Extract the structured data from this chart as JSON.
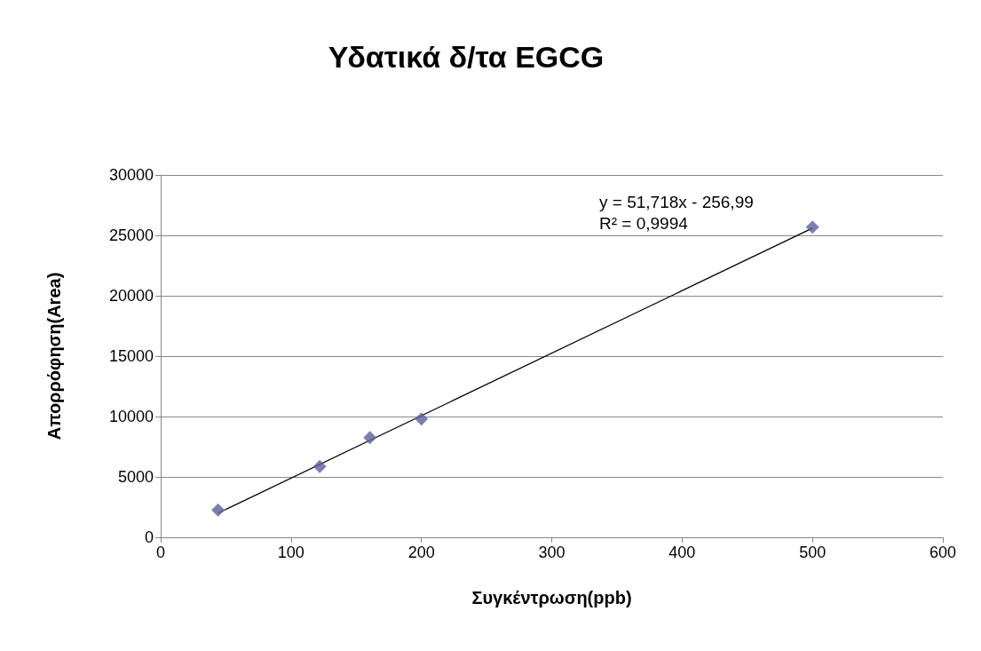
{
  "chart_data": {
    "type": "scatter",
    "title": "Υδατικά δ/τα EGCG",
    "xlabel": "Συγκέντρωση(ppb)",
    "ylabel": "Απορρόφηση(Area)",
    "series": [
      {
        "color": "#5e5f9c",
        "x": [
          44,
          122,
          160.5,
          200,
          500
        ],
        "values": [
          2260,
          5860,
          8260,
          9800,
          25680
        ]
      },
      {
        "type": "line",
        "color": "#000000",
        "x": [
          44,
          500
        ],
        "values": [
          2000,
          25600
        ],
        "marker": "none"
      }
    ],
    "annotations": [
      "y = 51,718x - 256,99",
      "R² = 0,9994"
    ],
    "xlim": [
      0,
      600
    ],
    "xticks": [
      0,
      100,
      200,
      300,
      400,
      500,
      600
    ],
    "ylim": [
      0,
      30000
    ],
    "yticks": [
      0,
      5000,
      10000,
      15000,
      20000,
      25000,
      30000
    ],
    "grid": "y",
    "marker": "diamond"
  }
}
